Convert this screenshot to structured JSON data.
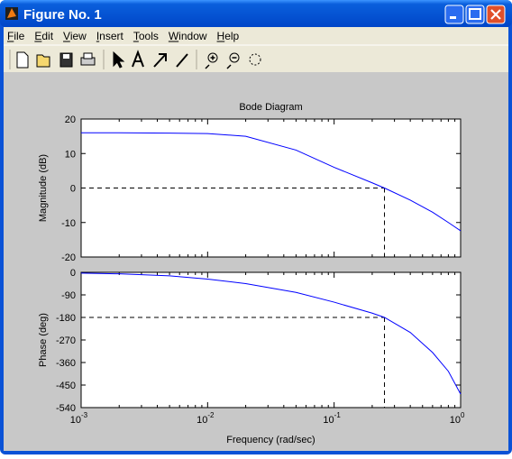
{
  "window": {
    "title": "Figure No. 1"
  },
  "menu": [
    "File",
    "Edit",
    "View",
    "Insert",
    "Tools",
    "Window",
    "Help"
  ],
  "chart_data": [
    {
      "type": "line",
      "title": "Bode Diagram",
      "ylabel": "Magnitude (dB)",
      "log_x": true,
      "x": [
        0.001,
        0.002,
        0.005,
        0.01,
        0.02,
        0.05,
        0.1,
        0.2,
        0.25,
        0.4,
        0.6,
        0.8,
        1
      ],
      "values": [
        16,
        16,
        15.9,
        15.8,
        15,
        11,
        6,
        1.5,
        0,
        -3.5,
        -7,
        -10,
        -12.4
      ],
      "color": "#0000ff",
      "xlim": [
        0.001,
        1
      ],
      "xticks": [
        0.001,
        0.01,
        0.1,
        1
      ],
      "ylim": [
        -20,
        20
      ],
      "yticks": [
        -20,
        -10,
        0,
        10,
        20
      ],
      "crossover": {
        "x": 0.25,
        "y": 0
      }
    },
    {
      "type": "line",
      "ylabel": "Phase (deg)",
      "xlabel": "Frequency (rad/sec)",
      "log_x": true,
      "x": [
        0.001,
        0.002,
        0.005,
        0.01,
        0.02,
        0.05,
        0.1,
        0.2,
        0.25,
        0.4,
        0.6,
        0.8,
        1
      ],
      "values": [
        -3,
        -6,
        -14,
        -27,
        -45,
        -80,
        -119,
        -163,
        -180,
        -240,
        -320,
        -395,
        -486
      ],
      "color": "#0000ff",
      "xlim": [
        0.001,
        1
      ],
      "xticks": [
        {
          "value": 0.001,
          "label": "10",
          "exponent": "-3"
        },
        {
          "value": 0.01,
          "label": "10",
          "exponent": "-2"
        },
        {
          "value": 0.1,
          "label": "10",
          "exponent": "-1"
        },
        {
          "value": 1,
          "label": "10",
          "exponent": "0"
        }
      ],
      "ylim": [
        -540,
        0
      ],
      "yticks": [
        -540,
        -450,
        -360,
        -270,
        -180,
        -90,
        0
      ],
      "crossover": {
        "x": 0.25,
        "y": -180
      }
    }
  ]
}
